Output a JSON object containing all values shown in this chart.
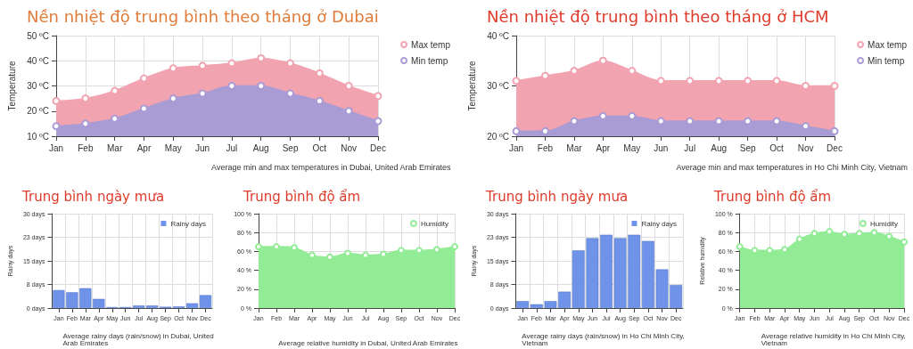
{
  "chart_data": [
    {
      "type": "area",
      "title": "Nền nhiệt độ trung bình theo tháng ở Dubai",
      "ylabel": "Temperature",
      "categories": [
        "Jan",
        "Feb",
        "Mar",
        "Apr",
        "May",
        "Jun",
        "Jul",
        "Aug",
        "Sep",
        "Oct",
        "Nov",
        "Dec"
      ],
      "series": [
        {
          "name": "Max temp",
          "color": "#f2a3b0",
          "values": [
            24,
            25,
            28,
            33,
            37,
            38,
            39,
            41,
            39,
            35,
            30,
            26
          ]
        },
        {
          "name": "Min temp",
          "color": "#a99bd4",
          "values": [
            14,
            15,
            17,
            21,
            25,
            27,
            30,
            30,
            27,
            24,
            20,
            16
          ]
        }
      ],
      "ylim": [
        10,
        50
      ],
      "yticks": [
        {
          "value": 10,
          "label": "10 ºC"
        },
        {
          "value": 20,
          "label": "20 ºC"
        },
        {
          "value": 30,
          "label": "30 ºC"
        },
        {
          "value": 40,
          "label": "40 ºC"
        },
        {
          "value": 50,
          "label": "50 ºC"
        }
      ],
      "grid": true,
      "legend": "top right",
      "marker": "circle",
      "annotations": [
        "Average min and max temperatures in Dubai, United Arab Emirates"
      ]
    },
    {
      "type": "area",
      "title": "Nền nhiệt độ trung bình theo tháng ở HCM",
      "ylabel": "Temperature",
      "categories": [
        "Jan",
        "Feb",
        "Mar",
        "Apr",
        "May",
        "Jun",
        "Jul",
        "Aug",
        "Sep",
        "Oct",
        "Nov",
        "Dec"
      ],
      "series": [
        {
          "name": "Max temp",
          "color": "#f2a3b0",
          "values": [
            31,
            32,
            33,
            35,
            33,
            31,
            31,
            31,
            31,
            31,
            30,
            30
          ]
        },
        {
          "name": "Min temp",
          "color": "#a99bd4",
          "values": [
            21,
            21,
            23,
            24,
            24,
            23,
            23,
            23,
            23,
            23,
            22,
            21
          ]
        }
      ],
      "ylim": [
        20,
        40
      ],
      "yticks": [
        {
          "value": 20,
          "label": "20 ºC"
        },
        {
          "value": 30,
          "label": "30 ºC"
        },
        {
          "value": 40,
          "label": "40 ºC"
        }
      ],
      "grid": true,
      "legend": "top right",
      "marker": "circle",
      "annotations": [
        "Average min and max temperatures in Ho Chi Minh City, Vietnam"
      ]
    },
    {
      "type": "bar",
      "title": "Trung bình ngày mưa",
      "ylabel": "Rainy days",
      "categories": [
        "Jan",
        "Feb",
        "Mar",
        "Apr",
        "May",
        "Jun",
        "Jul",
        "Aug",
        "Sep",
        "Oct",
        "Nov",
        "Dec"
      ],
      "series": [
        {
          "name": "Rainy days",
          "color": "#6f93e8",
          "values": [
            5.7,
            5,
            6.3,
            2.9,
            0.3,
            0.3,
            0.8,
            0.8,
            0.4,
            0.5,
            1.5,
            4.1
          ]
        }
      ],
      "ylim": [
        0,
        30
      ],
      "yticks": [
        {
          "value": 0,
          "label": "0 days"
        },
        {
          "value": 7.5,
          "label": "8 days"
        },
        {
          "value": 15,
          "label": "15 days"
        },
        {
          "value": 22.5,
          "label": "23 days"
        },
        {
          "value": 30,
          "label": "30 days"
        }
      ],
      "grid": true,
      "legend": "top right",
      "annotations": [
        "Average rainy days (rain/snow) in Dubai, United Arab Emirates"
      ]
    },
    {
      "type": "area",
      "title": "Trung bình độ ẩm",
      "categories": [
        "Jan",
        "Feb",
        "Mar",
        "Apr",
        "May",
        "Jun",
        "Jul",
        "Aug",
        "Sep",
        "Oct",
        "Nov",
        "Dec"
      ],
      "series": [
        {
          "name": "Humidity",
          "color": "#92ec96",
          "values": [
            65,
            65,
            64,
            56,
            54,
            58,
            56,
            57,
            61,
            61,
            62,
            65
          ]
        }
      ],
      "ylim": [
        0,
        100
      ],
      "yticks": [
        {
          "value": 0,
          "label": "0 %"
        },
        {
          "value": 20,
          "label": "20 %"
        },
        {
          "value": 40,
          "label": "40 %"
        },
        {
          "value": 60,
          "label": "60 %"
        },
        {
          "value": 80,
          "label": "80 %"
        },
        {
          "value": 100,
          "label": "100 %"
        }
      ],
      "grid": true,
      "legend": "top right",
      "marker": "circle",
      "annotations": [
        "Average relative humidity in Dubai, United Arab Emirates"
      ]
    },
    {
      "type": "bar",
      "title": "Trung bình ngày mưa",
      "ylabel": "Rainy days",
      "categories": [
        "Jan",
        "Feb",
        "Mar",
        "Apr",
        "May",
        "Jun",
        "Jul",
        "Aug",
        "Sep",
        "Oct",
        "Nov",
        "Dec"
      ],
      "series": [
        {
          "name": "Rainy days",
          "color": "#6f93e8",
          "values": [
            2.2,
            1.2,
            2.2,
            5.2,
            18.3,
            22.2,
            23.3,
            22.2,
            23.3,
            21.3,
            12.3,
            7.3
          ]
        }
      ],
      "ylim": [
        0,
        30
      ],
      "yticks": [
        {
          "value": 0,
          "label": "0 days"
        },
        {
          "value": 7.5,
          "label": "8 days"
        },
        {
          "value": 15,
          "label": "15 days"
        },
        {
          "value": 22.5,
          "label": "23 days"
        },
        {
          "value": 30,
          "label": "30 days"
        }
      ],
      "grid": true,
      "legend": "top right",
      "annotations": [
        "Average rainy days (rain/snow) in Ho Chi Minh City, Vietnam"
      ]
    },
    {
      "type": "area",
      "title": "Trung bình độ ẩm",
      "ylabel": "Relative humidity",
      "categories": [
        "Jan",
        "Feb",
        "Mar",
        "Apr",
        "May",
        "Jun",
        "Jul",
        "Aug",
        "Sep",
        "Oct",
        "Nov",
        "Dec"
      ],
      "series": [
        {
          "name": "Humidity",
          "color": "#92ec96",
          "values": [
            65,
            61,
            61,
            62,
            73,
            79,
            81,
            78,
            79,
            80,
            76,
            70
          ]
        }
      ],
      "ylim": [
        0,
        100
      ],
      "yticks": [
        {
          "value": 0,
          "label": "0 %"
        },
        {
          "value": 20,
          "label": "20 %"
        },
        {
          "value": 40,
          "label": "40 %"
        },
        {
          "value": 60,
          "label": "60 %"
        },
        {
          "value": 80,
          "label": "80 %"
        },
        {
          "value": 100,
          "label": "100 %"
        }
      ],
      "grid": true,
      "legend": "top right",
      "marker": "circle",
      "annotations": [
        "Average relative humidity in Ho Chi Minh City, Vietnam"
      ]
    }
  ]
}
